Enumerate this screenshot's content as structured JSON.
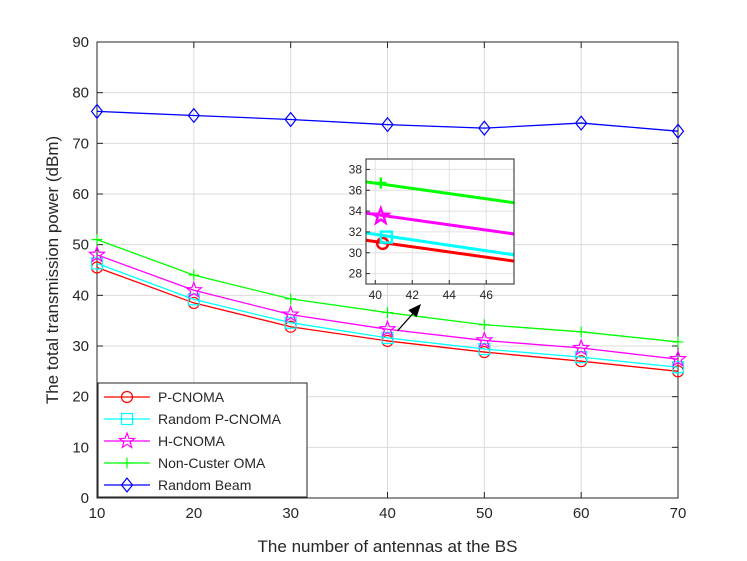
{
  "chart_data": {
    "type": "line",
    "title": "",
    "xlabel": "The number of antennas at the BS",
    "ylabel": "The total transmission power (dBm)",
    "xlim": [
      10,
      70
    ],
    "ylim": [
      0,
      90
    ],
    "x_ticks": [
      10,
      20,
      30,
      40,
      50,
      60,
      70
    ],
    "y_ticks": [
      0,
      10,
      20,
      30,
      40,
      50,
      60,
      70,
      80,
      90
    ],
    "grid": true,
    "legend_position": "bottom-left",
    "x": [
      10,
      20,
      30,
      40,
      50,
      60,
      70
    ],
    "series": [
      {
        "name": "P-CNOMA",
        "color": "#ff0000",
        "marker": "circle",
        "values": [
          45.5,
          38.5,
          33.8,
          31.0,
          28.8,
          27.0,
          25.0
        ]
      },
      {
        "name": "Random P-CNOMA",
        "color": "#00ffff",
        "marker": "square",
        "values": [
          46.3,
          39.2,
          34.6,
          31.6,
          29.4,
          27.8,
          25.8
        ]
      },
      {
        "name": "H-CNOMA",
        "color": "#ff00ff",
        "marker": "star",
        "values": [
          48.0,
          41.0,
          36.2,
          33.3,
          31.1,
          29.6,
          27.4
        ]
      },
      {
        "name": "Non-Custer OMA",
        "color": "#00ff00",
        "marker": "plus",
        "values": [
          51.0,
          44.0,
          39.3,
          36.6,
          34.2,
          32.8,
          30.8
        ]
      },
      {
        "name": "Random Beam",
        "color": "#0000ff",
        "marker": "diamond",
        "values": [
          76.3,
          75.5,
          74.7,
          73.7,
          73.0,
          74.0,
          72.4
        ]
      }
    ],
    "inset": {
      "xlim": [
        39.5,
        47.5
      ],
      "ylim": [
        27,
        39
      ],
      "x_ticks": [
        40,
        42,
        44,
        46
      ],
      "y_ticks": [
        28,
        30,
        32,
        34,
        36,
        38
      ],
      "series": [
        {
          "name": "P-CNOMA",
          "color": "#ff0000",
          "marker": "circle",
          "x": [
            39.5,
            47.5
          ],
          "values": [
            31.2,
            29.2
          ],
          "marker_x": 40.4,
          "marker_y": 30.9
        },
        {
          "name": "Random P-CNOMA",
          "color": "#00ffff",
          "marker": "square",
          "x": [
            39.5,
            47.5
          ],
          "values": [
            31.9,
            29.8
          ],
          "marker_x": 40.6,
          "marker_y": 31.5
        },
        {
          "name": "H-CNOMA",
          "color": "#ff00ff",
          "marker": "star",
          "x": [
            39.5,
            47.5
          ],
          "values": [
            33.8,
            31.8
          ],
          "marker_x": 40.3,
          "marker_y": 33.5
        },
        {
          "name": "Non-Custer OMA",
          "color": "#00ff00",
          "marker": "plus",
          "x": [
            39.5,
            47.5
          ],
          "values": [
            36.8,
            34.8
          ],
          "marker_x": 40.3,
          "marker_y": 36.7
        }
      ]
    }
  }
}
